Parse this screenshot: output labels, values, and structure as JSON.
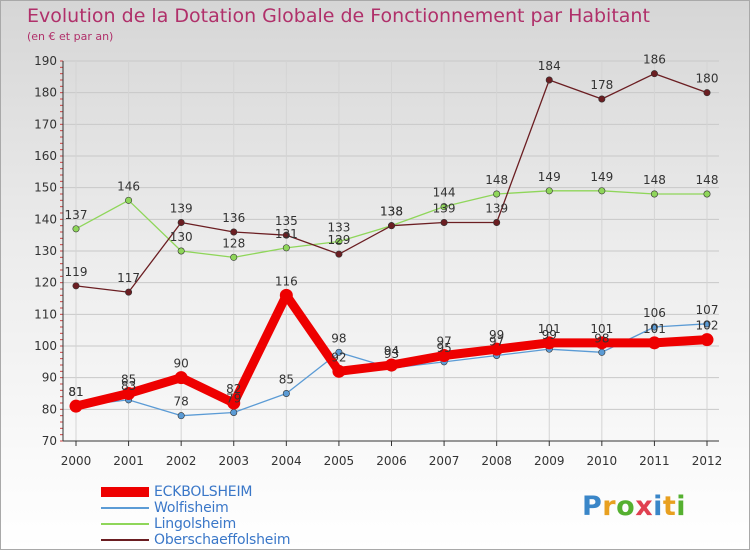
{
  "title": "Evolution de la Dotation Globale de Fonctionnement par Habitant",
  "subtitle": "(en € et par an)",
  "logo": {
    "text": "Proxiti",
    "colors": [
      "#3a86c8",
      "#e8a020",
      "#55b030",
      "#e04050",
      "#3a86c8",
      "#e8a020",
      "#55b030"
    ]
  },
  "chart_data": {
    "type": "line",
    "title": "Evolution de la Dotation Globale de Fonctionnement par Habitant",
    "ylabel": "(en € et par an)",
    "xlabel": "",
    "x": [
      "2000",
      "2001",
      "2002",
      "2003",
      "2004",
      "2005",
      "2006",
      "2007",
      "2008",
      "2009",
      "2010",
      "2011",
      "2012"
    ],
    "ylim": [
      70,
      190
    ],
    "yticks": [
      70,
      80,
      90,
      100,
      110,
      120,
      130,
      140,
      150,
      160,
      170,
      180,
      190
    ],
    "grid": true,
    "legend_position": "bottom-left",
    "series": [
      {
        "name": "ECKBOLSHEIM",
        "color": "#ee0000",
        "style": "thick",
        "values": [
          81,
          85,
          90,
          82,
          116,
          92,
          94,
          97,
          99,
          101,
          101,
          101,
          102
        ],
        "labels": [
          "81",
          "85",
          "90",
          "82",
          "116",
          "92",
          "94",
          "97",
          "99",
          "101",
          "101",
          "101",
          "102"
        ]
      },
      {
        "name": "Wolfisheim",
        "color": "#5b9bd5",
        "style": "thin",
        "values": [
          81,
          83,
          78,
          79,
          85,
          98,
          93,
          95,
          97,
          99,
          98,
          106,
          107
        ],
        "labels": [
          "81",
          "83",
          "78",
          "79",
          "85",
          "98",
          "93",
          "95",
          "97",
          "99",
          "98",
          "106",
          "107"
        ]
      },
      {
        "name": "Lingolsheim",
        "color": "#8fd65a",
        "style": "thin",
        "values": [
          137,
          146,
          130,
          128,
          131,
          133,
          138,
          144,
          148,
          149,
          149,
          148,
          148
        ],
        "labels": [
          "137",
          "146",
          "130",
          "128",
          "131",
          "133",
          "138",
          "144",
          "148",
          "149",
          "149",
          "148",
          "148"
        ]
      },
      {
        "name": "Oberschaeffolsheim",
        "color": "#6b1e22",
        "style": "thin",
        "values": [
          119,
          117,
          139,
          136,
          135,
          129,
          138,
          139,
          139,
          184,
          178,
          186,
          180
        ],
        "labels": [
          "119",
          "117",
          "139",
          "136",
          "135",
          "129",
          "138",
          "139",
          "139",
          "184",
          "178",
          "186",
          "180"
        ]
      }
    ]
  }
}
